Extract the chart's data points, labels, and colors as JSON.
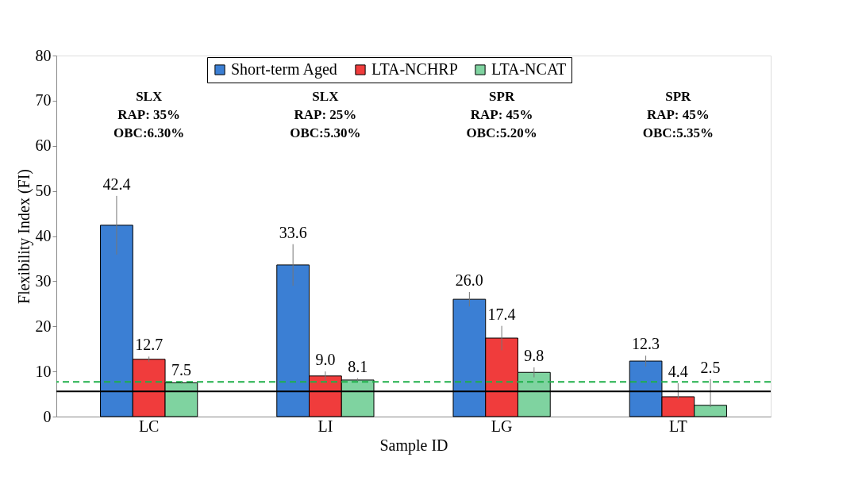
{
  "chart_data": {
    "type": "bar",
    "xlabel": "Sample ID",
    "ylabel": "Flexibility Index (FI)",
    "categories": [
      "LC",
      "LI",
      "LG",
      "LT"
    ],
    "series": [
      {
        "name": "Short-term Aged",
        "color": "#3b7fd4",
        "values": [
          42.4,
          33.6,
          26.0,
          12.3
        ],
        "value_labels": [
          "42.4",
          "33.6",
          "26.0",
          "12.3"
        ],
        "errors": [
          6.5,
          4.6,
          1.6,
          1.2
        ]
      },
      {
        "name": "LTA-NCHRP",
        "color": "#f03c3c",
        "values": [
          12.7,
          9.0,
          17.4,
          4.4
        ],
        "value_labels": [
          "12.7",
          "9.0",
          "17.4",
          "4.4"
        ],
        "errors": [
          0.6,
          1.0,
          2.7,
          [
            3.9,
            7.4
          ]
        ]
      },
      {
        "name": "LTA-NCAT",
        "color": "#7fd3a0",
        "values": [
          7.5,
          8.1,
          9.8,
          2.5
        ],
        "value_labels": [
          "7.5",
          "8.1",
          "9.8",
          "2.5"
        ],
        "errors": [
          0.2,
          0.4,
          1.1,
          [
            2.1,
            8.3
          ]
        ]
      }
    ],
    "ylim": [
      0,
      80
    ],
    "yticks": [
      0,
      10,
      20,
      30,
      40,
      50,
      60,
      70,
      80
    ],
    "grid": false,
    "legend": "top",
    "ref_lines": [
      {
        "axis": "y",
        "value": 5.6,
        "color": "#000000",
        "line_style": "solid"
      },
      {
        "axis": "y",
        "value": 7.7,
        "color": "#1fb04a",
        "line_style": "dashed"
      }
    ],
    "annotations": [
      "SLX\nRAP: 35%\nOBC:6.30%",
      "SLX\nRAP: 25%\nOBC:5.30%",
      "SPR\nRAP: 45%\nOBC:5.20%",
      "SPR\nRAP: 45%\nOBC:5.35%"
    ]
  }
}
